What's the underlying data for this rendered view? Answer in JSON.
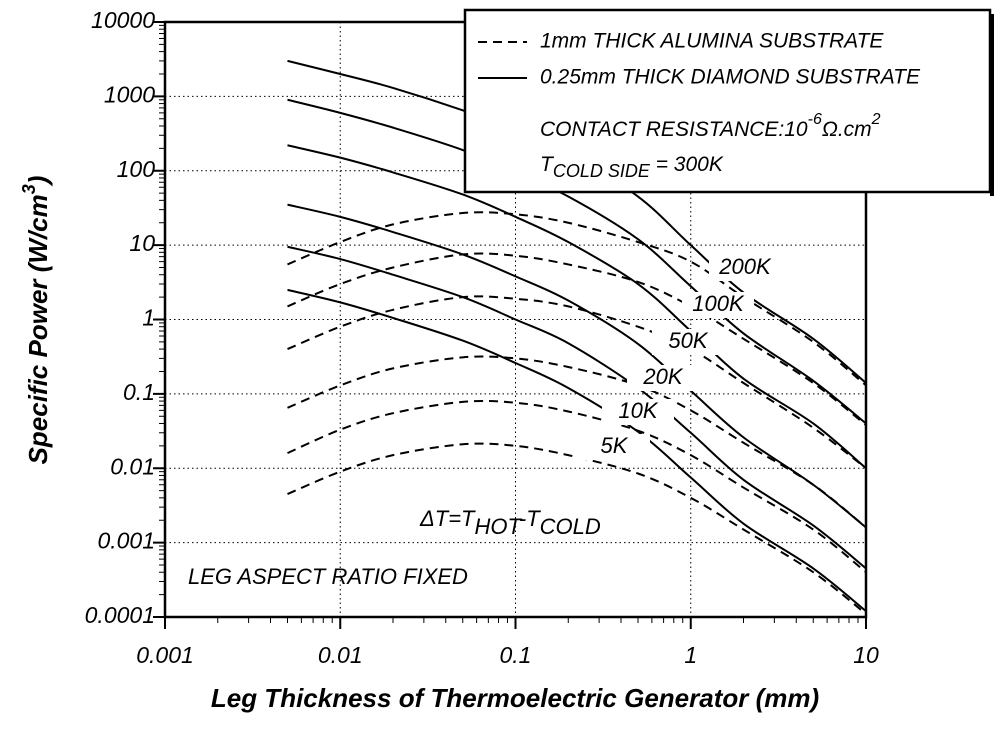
{
  "chart_data": {
    "type": "line",
    "xlabel": "Leg Thickness of Thermoelectric Generator (mm)",
    "ylabel": {
      "text": "Specific Power (W/cm",
      "sup": "3",
      "end": ")"
    },
    "log_x": true,
    "log_y": true,
    "grid": true,
    "xlim": [
      0.001,
      10
    ],
    "xticks": [
      0.001,
      0.01,
      0.1,
      1,
      10
    ],
    "ylim": [
      0.0001,
      10000
    ],
    "yticks": [
      0.0001,
      0.001,
      0.01,
      0.1,
      1,
      10,
      100,
      1000,
      10000
    ],
    "legend_position": "upper right",
    "legend": [
      {
        "name": "1mm THICK ALUMINA SUBSTRATE",
        "dash": "dashed"
      },
      {
        "name": "0.25mm THICK DIAMOND SUBSTRATE",
        "dash": "solid"
      }
    ],
    "contact_resistance": {
      "text": "CONTACT RESISTANCE:10",
      "exp": "-6",
      "unit": "Ω.cm",
      "unit_exp": "2"
    },
    "cold_side": {
      "base": "T",
      "sub": "COLD SIDE",
      "rest": " = 300K"
    },
    "delta_t": {
      "a": "ΔT=T",
      "sub1": "HOT",
      "b": "-T",
      "sub2": "COLD"
    },
    "annotation": "LEG ASPECT RATIO FIXED",
    "color": "#000000",
    "x": [
      0.005,
      0.01,
      0.02,
      0.05,
      0.1,
      0.2,
      0.5,
      1,
      2,
      5,
      10
    ],
    "series": [
      {
        "name": "200K",
        "values_diamond": [
          3000,
          2000,
          1300,
          650,
          350,
          170,
          45,
          10,
          2.3,
          0.55,
          0.14
        ],
        "values_alumina": [
          5.5,
          11,
          19,
          27,
          26,
          20,
          11,
          6,
          2,
          0.5,
          0.13
        ]
      },
      {
        "name": "100K",
        "values_diamond": [
          900,
          600,
          380,
          190,
          95,
          45,
          12,
          2.8,
          0.65,
          0.15,
          0.04
        ],
        "values_alumina": [
          1.5,
          3,
          5,
          7.5,
          7.2,
          5.5,
          3.2,
          1.5,
          0.55,
          0.14,
          0.038
        ]
      },
      {
        "name": "50K",
        "values_diamond": [
          220,
          150,
          95,
          48,
          24,
          11,
          3,
          0.7,
          0.16,
          0.04,
          0.01
        ],
        "values_alumina": [
          0.4,
          0.8,
          1.35,
          2,
          1.9,
          1.5,
          0.8,
          0.4,
          0.14,
          0.035,
          0.01
        ]
      },
      {
        "name": "20K",
        "values_diamond": [
          35,
          24,
          15,
          7.5,
          3.8,
          1.8,
          0.47,
          0.11,
          0.026,
          0.006,
          0.0016
        ],
        "values_alumina": [
          0.065,
          0.13,
          0.22,
          0.31,
          0.3,
          0.23,
          0.13,
          0.06,
          0.022,
          0.006,
          0.0016
        ]
      },
      {
        "name": "10K",
        "values_diamond": [
          9.5,
          6.5,
          4,
          2,
          1,
          0.48,
          0.12,
          0.03,
          0.007,
          0.0017,
          0.00045
        ],
        "values_alumina": [
          0.016,
          0.033,
          0.055,
          0.078,
          0.076,
          0.058,
          0.032,
          0.015,
          0.0055,
          0.0015,
          0.0004
        ]
      },
      {
        "name": "5K",
        "values_diamond": [
          2.5,
          1.7,
          1.05,
          0.52,
          0.26,
          0.12,
          0.031,
          0.0075,
          0.0018,
          0.00045,
          0.00012
        ],
        "values_alumina": [
          0.0045,
          0.009,
          0.015,
          0.021,
          0.02,
          0.015,
          0.0085,
          0.004,
          0.0015,
          0.0004,
          0.00011
        ]
      }
    ]
  }
}
